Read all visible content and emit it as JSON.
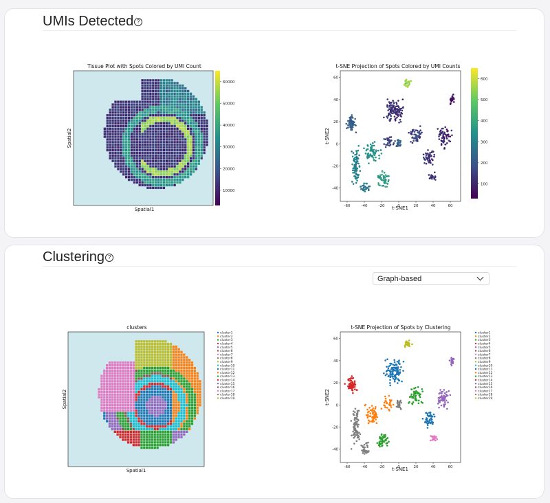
{
  "sections": {
    "umis": {
      "title": "UMIs Detected",
      "help_icon": "question-circle-icon"
    },
    "clustering": {
      "title": "Clustering",
      "help_icon": "question-circle-icon",
      "dropdown": {
        "selected": "Graph-based"
      }
    }
  },
  "colors": {
    "colorbar_stops": [
      "#440154",
      "#3b528b",
      "#21918c",
      "#5ec962",
      "#fde725"
    ],
    "tissue_bg": "#cfe8ee",
    "clusters": [
      "#1f77b4",
      "#ff7f0e",
      "#2ca02c",
      "#d62728",
      "#9467bd",
      "#8c564b",
      "#e377c2",
      "#7f7f7f",
      "#bcbd22",
      "#17becf",
      "#1f77b4",
      "#ff7f0e",
      "#2ca02c",
      "#d62728",
      "#9467bd",
      "#8c564b",
      "#e377c2",
      "#7f7f7f",
      "#bcbd22"
    ]
  },
  "chart_data": [
    {
      "id": "tissue-umi",
      "type": "heatmap",
      "title": "Tissue Plot with Spots Colored by UMI Count",
      "xlabel": "Spatial1",
      "ylabel": "Spatial2",
      "colorbar_ticks": [
        "60000",
        "50000",
        "40000",
        "30000",
        "20000",
        "10000"
      ],
      "colorbar_range": [
        3000,
        65000
      ]
    },
    {
      "id": "tsne-umi",
      "type": "scatter",
      "title": "t-SNE Projection of Spots Colored by UMI Counts",
      "xlabel": "t-SNE1",
      "ylabel": "t-SNE2",
      "xticks": [
        "-60",
        "-40",
        "-20",
        "0",
        "20",
        "40",
        "60"
      ],
      "yticks": [
        "60",
        "40",
        "20",
        "0",
        "-20",
        "-40"
      ],
      "xlim": [
        -68,
        72
      ],
      "ylim": [
        -52,
        66
      ],
      "colorbar_ticks": [
        "60000",
        "50000",
        "40000",
        "30000",
        "20000",
        "10000"
      ],
      "colorbar_range": [
        3000,
        65000
      ]
    },
    {
      "id": "tissue-clusters",
      "type": "heatmap",
      "title": "clusters",
      "xlabel": "Spatial1",
      "ylabel": "Spatial2",
      "legend": [
        "cluster1",
        "cluster2",
        "cluster3",
        "cluster4",
        "cluster5",
        "cluster6",
        "cluster7",
        "cluster8",
        "cluster9",
        "cluster10",
        "cluster11",
        "cluster12",
        "cluster13",
        "cluster14",
        "cluster15",
        "cluster16",
        "cluster17",
        "cluster18",
        "cluster19"
      ]
    },
    {
      "id": "tsne-clusters",
      "type": "scatter",
      "title": "t-SNE Projection of Spots by Clustering",
      "xlabel": "t-SNE1",
      "ylabel": "t-SNE2",
      "xticks": [
        "-60",
        "-40",
        "-20",
        "0",
        "20",
        "40",
        "60"
      ],
      "yticks": [
        "60",
        "40",
        "20",
        "0",
        "-20",
        "-40"
      ],
      "xlim": [
        -68,
        72
      ],
      "ylim": [
        -52,
        66
      ],
      "legend": [
        "cluster1",
        "cluster2",
        "cluster3",
        "cluster4",
        "cluster5",
        "cluster6",
        "cluster7",
        "cluster8",
        "cluster9",
        "cluster10",
        "cluster11",
        "cluster12",
        "cluster13",
        "cluster14",
        "cluster15",
        "cluster16",
        "cluster17",
        "cluster18",
        "cluster19"
      ]
    }
  ]
}
